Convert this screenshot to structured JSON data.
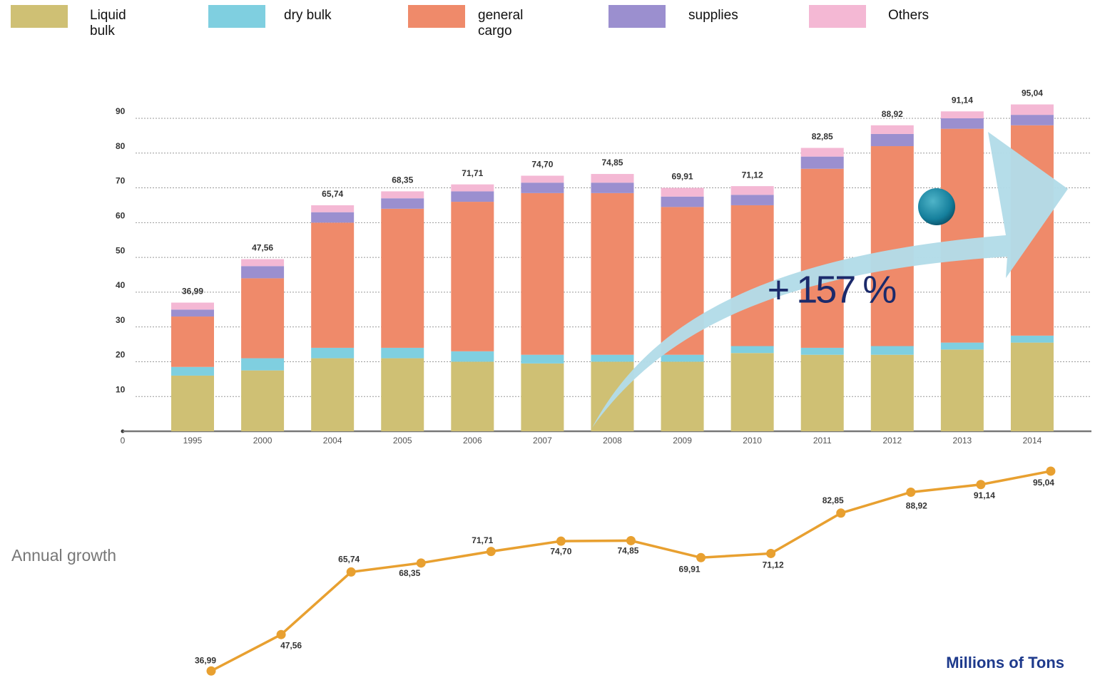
{
  "chart_data": [
    {
      "type": "stacked-bar",
      "categories": [
        "1995",
        "2000",
        "2004",
        "2005",
        "2006",
        "2007",
        "2008",
        "2009",
        "2010",
        "2011",
        "2012",
        "2013",
        "2014"
      ],
      "series": [
        {
          "name": "Liquid bulk",
          "color": "#cfc074",
          "values": [
            16,
            17.5,
            21,
            21,
            20,
            19.5,
            20,
            20,
            22.5,
            22,
            22,
            23.5,
            25.5
          ]
        },
        {
          "name": "dry bulk",
          "color": "#7fcfe0",
          "values": [
            2.5,
            3.5,
            3,
            3,
            3,
            2.5,
            2,
            2,
            2,
            2,
            2.5,
            2,
            2
          ]
        },
        {
          "name": "general cargo",
          "color": "#ef8a6a",
          "values": [
            14.5,
            23,
            36,
            40,
            43,
            46.5,
            46.5,
            42.5,
            40.5,
            51.5,
            57.5,
            61.5,
            60.5
          ]
        },
        {
          "name": "supplies",
          "color": "#9b8fcf",
          "values": [
            2,
            3.5,
            3,
            3,
            3,
            3,
            3,
            3,
            3,
            3.5,
            3.5,
            3,
            3
          ]
        },
        {
          "name": "Others",
          "color": "#f4b8d4",
          "values": [
            2,
            2,
            2,
            2,
            2,
            2,
            2.5,
            2.5,
            2.5,
            2.5,
            2.5,
            2,
            3
          ]
        }
      ],
      "ylim": [
        0,
        90
      ],
      "yticks": [
        0,
        10,
        20,
        30,
        40,
        50,
        60,
        70,
        80,
        90
      ],
      "grid": true,
      "annotation": "+ 157 %"
    },
    {
      "type": "line",
      "title": "Annual growth",
      "unit_label": "Millions of Tons",
      "color": "#e8a030",
      "categories": [
        "1995",
        "2000",
        "2004",
        "2005",
        "2006",
        "2007",
        "2008",
        "2009",
        "2010",
        "2011",
        "2012",
        "2013",
        "2014"
      ],
      "values": [
        36.99,
        47.56,
        65.74,
        68.35,
        71.71,
        74.7,
        74.85,
        69.91,
        71.12,
        82.85,
        88.92,
        91.14,
        95.04
      ],
      "value_labels": [
        "36,99",
        "47,56",
        "65,74",
        "68,35",
        "71,71",
        "74,70",
        "74,85",
        "69,91",
        "71,12",
        "82,85",
        "88,92",
        "91,14",
        "95,04"
      ],
      "ylim": [
        30,
        100
      ]
    }
  ]
}
